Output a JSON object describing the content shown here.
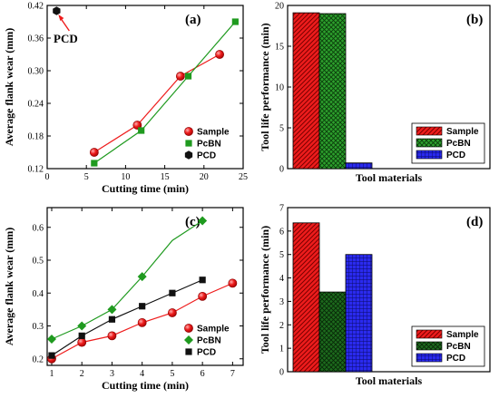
{
  "colors": {
    "sample": "#ee1c1c",
    "pcbn": "#1f9a1f",
    "pcbn_d_bar": "#1d6b1d",
    "pcd": "#111111",
    "pcd_bar": "#1a1aee"
  },
  "chart_data": [
    {
      "id": "a",
      "type": "line",
      "panel_label": "(a)",
      "xlabel": "Cutting time (min)",
      "ylabel": "Average flank wear (mm)",
      "xlim": [
        0,
        25
      ],
      "ylim": [
        0.12,
        0.42
      ],
      "xticks": [
        0,
        5,
        10,
        15,
        20,
        25
      ],
      "yticks": [
        0.12,
        0.18,
        0.24,
        0.3,
        0.36,
        0.42
      ],
      "ytick_labels": [
        "0.12",
        "0.18",
        "0.24",
        "0.30",
        "0.36",
        "0.42"
      ],
      "legend_position": "bottom-right",
      "annotation": "PCD",
      "series": [
        {
          "name": "Sample",
          "marker": "circle",
          "color_key": "sample",
          "x": [
            6,
            11.5,
            17,
            22
          ],
          "y": [
            0.15,
            0.2,
            0.29,
            0.33
          ]
        },
        {
          "name": "PcBN",
          "marker": "square",
          "color_key": "pcbn",
          "x": [
            6,
            12,
            18,
            24
          ],
          "y": [
            0.13,
            0.19,
            0.29,
            0.39
          ]
        },
        {
          "name": "PCD",
          "marker": "hexagon",
          "color_key": "pcd",
          "x": [
            1.2
          ],
          "y": [
            0.41
          ]
        }
      ]
    },
    {
      "id": "b",
      "type": "bar",
      "panel_label": "(b)",
      "xlabel": "Tool materials",
      "ylabel": "Tool life performance (min)",
      "ylim": [
        0,
        20
      ],
      "yticks": [
        0,
        5,
        10,
        15,
        20
      ],
      "legend_position": "bottom-right",
      "series": [
        {
          "name": "Sample",
          "value": 19.1,
          "pattern": "hatch-sample",
          "color_key": "sample"
        },
        {
          "name": "PcBN",
          "value": 19.0,
          "pattern": "xhatch-green",
          "color_key": "pcbn"
        },
        {
          "name": "PCD",
          "value": 0.7,
          "pattern": "grid-blue",
          "color_key": "pcd_bar"
        }
      ]
    },
    {
      "id": "c",
      "type": "line",
      "panel_label": "(c)",
      "xlabel": "Cutting time (min)",
      "ylabel": "Average flank wear (mm)",
      "xlim": [
        0.85,
        7.35
      ],
      "ylim": [
        0.18,
        0.66
      ],
      "xticks": [
        1,
        2,
        3,
        4,
        5,
        6,
        7
      ],
      "yticks": [
        0.2,
        0.3,
        0.4,
        0.5,
        0.6
      ],
      "ytick_labels": [
        "0.2",
        "0.3",
        "0.4",
        "0.5",
        "0.6"
      ],
      "legend_position": "bottom-right",
      "series": [
        {
          "name": "Sample",
          "marker": "circle",
          "color_key": "sample",
          "x": [
            1,
            2,
            3,
            4,
            5,
            6,
            7
          ],
          "y": [
            0.2,
            0.25,
            0.27,
            0.31,
            0.34,
            0.39,
            0.43
          ],
          "markers_at": [
            0,
            1,
            2,
            3,
            4,
            5,
            6
          ]
        },
        {
          "name": "PcBN",
          "marker": "diamond",
          "color_key": "pcbn",
          "x": [
            1,
            2,
            3,
            4,
            5,
            6
          ],
          "y": [
            0.26,
            0.3,
            0.35,
            0.45,
            0.56,
            0.62
          ],
          "markers_at": [
            0,
            1,
            2,
            3,
            5
          ]
        },
        {
          "name": "PCD",
          "marker": "square",
          "color_key": "pcd",
          "x": [
            1,
            2,
            3,
            4,
            5,
            6
          ],
          "y": [
            0.21,
            0.27,
            0.32,
            0.36,
            0.4,
            0.44
          ],
          "markers_at": [
            0,
            1,
            2,
            3,
            4,
            5
          ]
        }
      ]
    },
    {
      "id": "d",
      "type": "bar",
      "panel_label": "(d)",
      "xlabel": "Tool materials",
      "ylabel": "Tool life performance (min)",
      "ylim": [
        0,
        7
      ],
      "yticks": [
        0,
        1,
        2,
        3,
        4,
        5,
        6,
        7
      ],
      "legend_position": "bottom-right",
      "series": [
        {
          "name": "Sample",
          "value": 6.35,
          "pattern": "hatch-sample",
          "color_key": "sample"
        },
        {
          "name": "PcBN",
          "value": 3.4,
          "pattern": "xhatch-dark",
          "color_key": "pcbn_d_bar"
        },
        {
          "name": "PCD",
          "value": 5.0,
          "pattern": "grid-blue",
          "color_key": "pcd_bar"
        }
      ]
    }
  ]
}
